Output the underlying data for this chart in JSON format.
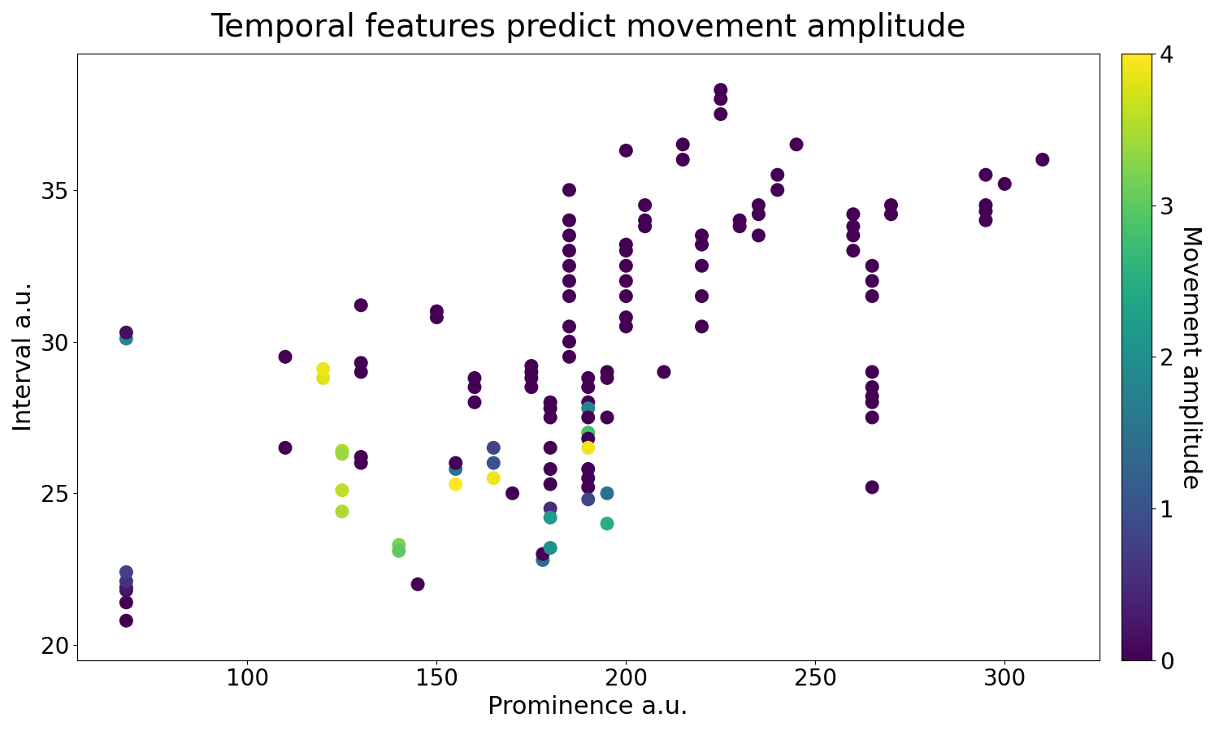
{
  "title": "Temporal features predict movement amplitude",
  "xlabel": "Prominence a.u.",
  "ylabel": "Interval a.u.",
  "colorbar_label": "Movement amplitude",
  "xlim": [
    55,
    325
  ],
  "ylim": [
    19.5,
    39.5
  ],
  "cmap": "viridis",
  "vmin": 0,
  "vmax": 4,
  "title_fontsize": 28,
  "label_fontsize": 22,
  "tick_fontsize": 20,
  "colorbar_tick_fontsize": 20,
  "colorbar_label_fontsize": 22,
  "marker_size": 150,
  "points": [
    [
      68,
      20.8,
      0.0
    ],
    [
      68,
      21.4,
      0.0
    ],
    [
      68,
      21.8,
      0.15
    ],
    [
      68,
      21.9,
      0.25
    ],
    [
      68,
      22.1,
      0.55
    ],
    [
      68,
      22.4,
      0.75
    ],
    [
      68,
      30.1,
      1.8
    ],
    [
      68,
      30.3,
      0.15
    ],
    [
      110,
      26.5,
      0.0
    ],
    [
      110,
      29.5,
      0.0
    ],
    [
      120,
      28.8,
      3.8
    ],
    [
      120,
      29.1,
      3.9
    ],
    [
      125,
      26.4,
      3.5
    ],
    [
      125,
      26.3,
      3.4
    ],
    [
      125,
      25.1,
      3.6
    ],
    [
      125,
      24.4,
      3.5
    ],
    [
      130,
      29.3,
      0.0
    ],
    [
      130,
      29.0,
      0.0
    ],
    [
      130,
      26.2,
      0.0
    ],
    [
      130,
      26.0,
      0.0
    ],
    [
      130,
      31.2,
      0.0
    ],
    [
      140,
      23.3,
      3.2
    ],
    [
      140,
      23.1,
      3.0
    ],
    [
      145,
      22.0,
      0.0
    ],
    [
      150,
      30.8,
      0.0
    ],
    [
      150,
      31.0,
      0.0
    ],
    [
      155,
      25.8,
      1.5
    ],
    [
      155,
      26.0,
      0.0
    ],
    [
      155,
      25.3,
      4.0
    ],
    [
      160,
      28.8,
      0.0
    ],
    [
      160,
      28.5,
      0.0
    ],
    [
      160,
      28.0,
      0.0
    ],
    [
      165,
      26.5,
      0.8
    ],
    [
      165,
      26.0,
      1.0
    ],
    [
      165,
      25.5,
      3.9
    ],
    [
      170,
      25.0,
      0.0
    ],
    [
      175,
      29.2,
      0.0
    ],
    [
      175,
      29.0,
      0.0
    ],
    [
      175,
      28.8,
      0.0
    ],
    [
      175,
      28.5,
      0.0
    ],
    [
      178,
      22.8,
      1.4
    ],
    [
      178,
      23.0,
      0.0
    ],
    [
      180,
      28.0,
      0.0
    ],
    [
      180,
      27.8,
      0.0
    ],
    [
      180,
      27.5,
      0.0
    ],
    [
      180,
      26.5,
      0.0
    ],
    [
      180,
      25.8,
      0.0
    ],
    [
      180,
      25.3,
      0.0
    ],
    [
      180,
      24.5,
      0.5
    ],
    [
      180,
      24.2,
      2.2
    ],
    [
      180,
      23.2,
      2.0
    ],
    [
      185,
      35.0,
      0.0
    ],
    [
      185,
      34.0,
      0.0
    ],
    [
      185,
      33.5,
      0.0
    ],
    [
      185,
      33.0,
      0.0
    ],
    [
      185,
      32.5,
      0.0
    ],
    [
      185,
      32.0,
      0.0
    ],
    [
      185,
      31.5,
      0.0
    ],
    [
      185,
      30.5,
      0.0
    ],
    [
      185,
      30.0,
      0.0
    ],
    [
      185,
      29.5,
      0.0
    ],
    [
      190,
      28.8,
      0.0
    ],
    [
      190,
      28.5,
      0.0
    ],
    [
      190,
      28.0,
      0.0
    ],
    [
      190,
      27.8,
      1.8
    ],
    [
      190,
      27.5,
      0.0
    ],
    [
      190,
      27.0,
      2.8
    ],
    [
      190,
      26.8,
      0.0
    ],
    [
      190,
      26.5,
      3.9
    ],
    [
      190,
      25.8,
      0.0
    ],
    [
      190,
      25.5,
      0.0
    ],
    [
      190,
      25.2,
      0.0
    ],
    [
      190,
      24.8,
      0.8
    ],
    [
      195,
      29.0,
      0.0
    ],
    [
      195,
      28.8,
      0.0
    ],
    [
      195,
      27.5,
      0.0
    ],
    [
      195,
      25.0,
      1.5
    ],
    [
      195,
      24.0,
      2.5
    ],
    [
      200,
      33.2,
      0.0
    ],
    [
      200,
      33.0,
      0.0
    ],
    [
      200,
      32.5,
      0.0
    ],
    [
      200,
      32.0,
      0.0
    ],
    [
      200,
      31.5,
      0.0
    ],
    [
      200,
      30.8,
      0.0
    ],
    [
      200,
      30.5,
      0.0
    ],
    [
      200,
      36.3,
      0.0
    ],
    [
      205,
      34.5,
      0.0
    ],
    [
      205,
      34.0,
      0.0
    ],
    [
      205,
      33.8,
      0.0
    ],
    [
      210,
      29.0,
      0.0
    ],
    [
      215,
      36.5,
      0.0
    ],
    [
      215,
      36.0,
      0.0
    ],
    [
      220,
      33.5,
      0.0
    ],
    [
      220,
      33.2,
      0.0
    ],
    [
      220,
      32.5,
      0.0
    ],
    [
      220,
      31.5,
      0.0
    ],
    [
      220,
      30.5,
      0.0
    ],
    [
      225,
      38.3,
      0.0
    ],
    [
      225,
      38.0,
      0.0
    ],
    [
      225,
      37.5,
      0.0
    ],
    [
      230,
      34.0,
      0.0
    ],
    [
      230,
      33.8,
      0.0
    ],
    [
      235,
      34.5,
      0.0
    ],
    [
      235,
      34.2,
      0.0
    ],
    [
      235,
      33.5,
      0.0
    ],
    [
      240,
      35.5,
      0.0
    ],
    [
      240,
      35.0,
      0.0
    ],
    [
      245,
      36.5,
      0.0
    ],
    [
      260,
      34.2,
      0.0
    ],
    [
      260,
      33.8,
      0.0
    ],
    [
      260,
      33.5,
      0.0
    ],
    [
      260,
      33.0,
      0.0
    ],
    [
      265,
      32.5,
      0.0
    ],
    [
      265,
      32.0,
      0.0
    ],
    [
      265,
      31.5,
      0.0
    ],
    [
      265,
      29.0,
      0.0
    ],
    [
      265,
      28.5,
      0.0
    ],
    [
      265,
      28.2,
      0.0
    ],
    [
      265,
      28.0,
      0.0
    ],
    [
      265,
      27.5,
      0.0
    ],
    [
      265,
      25.2,
      0.0
    ],
    [
      270,
      34.5,
      0.0
    ],
    [
      270,
      34.2,
      0.0
    ],
    [
      295,
      35.5,
      0.0
    ],
    [
      295,
      34.5,
      0.0
    ],
    [
      295,
      34.3,
      0.0
    ],
    [
      295,
      34.0,
      0.0
    ],
    [
      300,
      35.2,
      0.0
    ],
    [
      310,
      36.0,
      0.0
    ]
  ]
}
